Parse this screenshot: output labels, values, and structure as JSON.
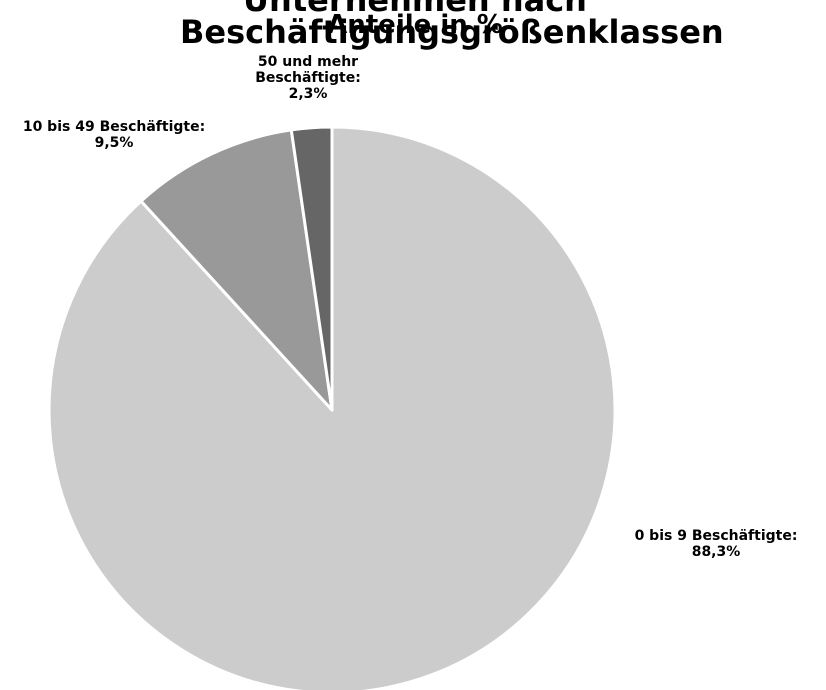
{
  "chart_data": {
    "type": "pie",
    "title": "Unternehmen nach Beschäftigungsgrößenklassen",
    "subtitle": "Anteile in %",
    "start_angle_deg": 0,
    "direction": "clockwise",
    "grid": false,
    "legend": "none",
    "slices": [
      {
        "category": "0 bis 9 Beschäftigte",
        "value": 88.3,
        "label_lines": [
          "0 bis 9 Beschäftigte:",
          "88,3%"
        ],
        "color": "#cccccc"
      },
      {
        "category": "10 bis 49 Beschäftigte",
        "value": 9.5,
        "label_lines": [
          "10 bis 49 Beschäftigte:",
          "9,5%"
        ],
        "color": "#999999"
      },
      {
        "category": "50 und mehr Beschäftigte",
        "value": 2.3,
        "label_lines": [
          "50 und mehr",
          "Beschäftigte:",
          "2,3%"
        ],
        "color": "#666666"
      }
    ]
  }
}
